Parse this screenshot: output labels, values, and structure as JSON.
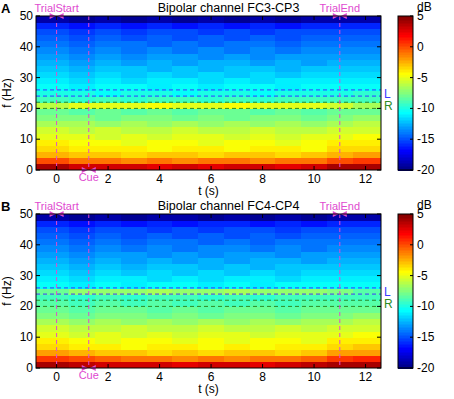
{
  "chart_data": [
    {
      "type": "heatmap",
      "panel": "A",
      "title": "Bipolar channel FC3-CP3",
      "x_label": "t (s)",
      "y_label": "f (Hz)",
      "x": [
        0,
        1,
        2,
        3,
        4,
        5,
        6,
        7,
        8,
        9,
        10,
        11,
        12
      ],
      "y": [
        1,
        3,
        5,
        7,
        9,
        11,
        13,
        15,
        17,
        19,
        21,
        23,
        25,
        27,
        29,
        31,
        33,
        35,
        37,
        39,
        41,
        43,
        45,
        47,
        49
      ],
      "z": [
        [
          4,
          3,
          3,
          3,
          2.5,
          3,
          2.5,
          3,
          3,
          2.5,
          3,
          4,
          4
        ],
        [
          0,
          -1,
          -1,
          -1.5,
          -1,
          -1.5,
          -1,
          -1,
          -1.5,
          -1,
          -1,
          0,
          0.5
        ],
        [
          -2.5,
          -3,
          -3,
          -3.5,
          -3,
          -3,
          -3.5,
          -3,
          -3,
          -3.5,
          -3,
          -2.5,
          -2
        ],
        [
          -3.5,
          -4,
          -4,
          -4,
          -4.5,
          -4,
          -4,
          -4.5,
          -4,
          -4,
          -4.5,
          -3.5,
          -3.5
        ],
        [
          -4,
          -4.5,
          -4.5,
          -5,
          -4.5,
          -4.5,
          -5,
          -4.5,
          -4.5,
          -5,
          -4.5,
          -4,
          -4
        ],
        [
          -5,
          -5,
          -5.5,
          -5,
          -5.5,
          -5,
          -5,
          -5.5,
          -5,
          -5.5,
          -5,
          -5,
          -4.5
        ],
        [
          -5.5,
          -6,
          -5.5,
          -6,
          -6,
          -5.5,
          -6,
          -6,
          -5.5,
          -6,
          -6,
          -5.5,
          -5.5
        ],
        [
          -6.5,
          -6.5,
          -7,
          -6.5,
          -7,
          -6.5,
          -7,
          -6.5,
          -7,
          -6.5,
          -7,
          -6.5,
          -6
        ],
        [
          -7.5,
          -7.5,
          -8,
          -7.5,
          -7.5,
          -8,
          -7.5,
          -8,
          -7.5,
          -7.5,
          -8,
          -7.5,
          -7
        ],
        [
          -8,
          -8.5,
          -8,
          -8.5,
          -8,
          -8.5,
          -8,
          -8,
          -8.5,
          -8,
          -8.5,
          -8,
          -8
        ],
        [
          -6,
          -5,
          -5,
          -5,
          -4.5,
          -5,
          -5,
          -4.5,
          -5,
          -5,
          -5,
          -5.5,
          -6.5
        ],
        [
          -9,
          -9.5,
          -9,
          -9.5,
          -9,
          -9,
          -9.5,
          -9,
          -9.5,
          -9,
          -9,
          -9,
          -9
        ],
        [
          -10,
          -10,
          -10.5,
          -10,
          -10,
          -10.5,
          -10,
          -10,
          -10.5,
          -10,
          -10,
          -10,
          -9.5
        ],
        [
          -10.5,
          -11,
          -10.5,
          -10.5,
          -11,
          -10.5,
          -11,
          -10.5,
          -10.5,
          -11,
          -10.5,
          -10.5,
          -10.5
        ],
        [
          -11,
          -11.5,
          -11,
          -11.5,
          -11,
          -11,
          -11.5,
          -11,
          -11.5,
          -11,
          -11,
          -11,
          -11
        ],
        [
          -11.5,
          -12,
          -11.5,
          -12,
          -11.5,
          -12,
          -11.5,
          -12,
          -11.5,
          -12,
          -11.5,
          -11.5,
          -11.5
        ],
        [
          -12,
          -12.5,
          -12,
          -12,
          -12.5,
          -12,
          -12.5,
          -12,
          -12,
          -12.5,
          -12,
          -12,
          -12
        ],
        [
          -12.5,
          -13,
          -12.5,
          -13,
          -12.5,
          -13,
          -12.5,
          -12.5,
          -13,
          -12.5,
          -13,
          -12.5,
          -12.5
        ],
        [
          -13,
          -13.5,
          -13,
          -13.5,
          -13,
          -13,
          -13.5,
          -13,
          -13.5,
          -13,
          -13,
          -13,
          -13
        ],
        [
          -13.5,
          -14,
          -13.5,
          -14,
          -13.5,
          -14,
          -13.5,
          -14,
          -13.5,
          -14,
          -13.5,
          -13.5,
          -13.5
        ],
        [
          -14,
          -14.5,
          -14,
          -14,
          -14.5,
          -14,
          -14.5,
          -14,
          -14,
          -14.5,
          -14,
          -14,
          -14
        ],
        [
          -14.5,
          -15,
          -14.5,
          -15,
          -14.5,
          -15,
          -14.5,
          -15,
          -14.5,
          -15,
          -14.5,
          -14.5,
          -14.5
        ],
        [
          -15,
          -15.5,
          -15,
          -15.5,
          -15,
          -15,
          -15.5,
          -15,
          -15.5,
          -15,
          -15,
          -15,
          -15
        ],
        [
          -16,
          -16.5,
          -16,
          -16.5,
          -16,
          -16.5,
          -16,
          -16.5,
          -16,
          -16.5,
          -16,
          -16,
          -16
        ],
        [
          -19,
          -19.5,
          -19,
          -19.5,
          -19,
          -19.5,
          -19,
          -19.5,
          -19,
          -19.5,
          -19,
          -19,
          -19
        ]
      ],
      "xlim": [
        -0.8,
        12.6
      ],
      "ylim": [
        0,
        50
      ],
      "xticks": [
        0,
        2,
        4,
        6,
        8,
        10,
        12
      ],
      "yticks": [
        0,
        10,
        20,
        30,
        40,
        50
      ],
      "colorbar": {
        "label": "dB",
        "range": [
          -20,
          5
        ],
        "ticks": [
          -20,
          -15,
          -10,
          -5,
          0,
          5
        ]
      },
      "bands": [
        {
          "label": "L",
          "low": 24,
          "high": 26,
          "color": "#3a3aff"
        },
        {
          "label": "R",
          "low": 20,
          "high": 22,
          "color": "#2e8b22"
        }
      ],
      "top_events": [
        {
          "label": "TrialStart",
          "t": 0
        },
        {
          "label": "TrialEnd",
          "t": 11
        }
      ],
      "bottom_events": [
        {
          "label": "Cue",
          "t": 1.25
        }
      ]
    },
    {
      "type": "heatmap",
      "panel": "B",
      "title": "Bipolar channel FC4-CP4",
      "x_label": "t (s)",
      "y_label": "f (Hz)",
      "x": [
        0,
        1,
        2,
        3,
        4,
        5,
        6,
        7,
        8,
        9,
        10,
        11,
        12
      ],
      "y": [
        1,
        3,
        5,
        7,
        9,
        11,
        13,
        15,
        17,
        19,
        21,
        23,
        25,
        27,
        29,
        31,
        33,
        35,
        37,
        39,
        41,
        43,
        45,
        47,
        49
      ],
      "z": [
        [
          4,
          3.5,
          3,
          3,
          3,
          2.5,
          3,
          3,
          2.5,
          3,
          3.5,
          4,
          4
        ],
        [
          0.5,
          0,
          -0.5,
          -1,
          -1,
          -1.5,
          -1,
          -1.5,
          -1,
          -1,
          -0.5,
          0.5,
          1
        ],
        [
          -2,
          -2.5,
          -3,
          -3,
          -3.5,
          -3,
          -3.5,
          -3,
          -3,
          -3.5,
          -3,
          -2,
          -2
        ],
        [
          -3.5,
          -4,
          -4,
          -4.5,
          -4,
          -4,
          -4.5,
          -4,
          -4.5,
          -4,
          -4,
          -3.5,
          -3
        ],
        [
          -4,
          -4.5,
          -5,
          -4.5,
          -4.5,
          -5,
          -4.5,
          -5,
          -4.5,
          -4.5,
          -5,
          -4,
          -4
        ],
        [
          -5,
          -5.5,
          -5,
          -5.5,
          -5,
          -5.5,
          -5,
          -5,
          -5.5,
          -5,
          -5,
          -5,
          -4.5
        ],
        [
          -5.5,
          -6,
          -6,
          -5.5,
          -6,
          -6,
          -5.5,
          -6,
          -6,
          -5.5,
          -6,
          -5.5,
          -5.5
        ],
        [
          -6.5,
          -7,
          -6.5,
          -7,
          -6.5,
          -7,
          -6.5,
          -7,
          -6.5,
          -7,
          -6.5,
          -6.5,
          -6
        ],
        [
          -7.5,
          -8,
          -7.5,
          -7.5,
          -8,
          -7.5,
          -8,
          -7.5,
          -7.5,
          -8,
          -7.5,
          -7.5,
          -7
        ],
        [
          -8,
          -8.5,
          -8,
          -8,
          -8.5,
          -8,
          -8.5,
          -8,
          -8,
          -8.5,
          -8,
          -8,
          -8
        ],
        [
          -8.5,
          -9,
          -8.5,
          -9,
          -8.5,
          -9,
          -8.5,
          -9,
          -8.5,
          -9,
          -8.5,
          -8.5,
          -8.5
        ],
        [
          -9,
          -9.5,
          -9,
          -9.5,
          -9,
          -9,
          -9.5,
          -9,
          -9.5,
          -9,
          -9,
          -9,
          -9
        ],
        [
          -8,
          -7,
          -7,
          -7,
          -6.5,
          -7,
          -7,
          -6.5,
          -7,
          -7,
          -7,
          -7.5,
          -8.5
        ],
        [
          -10.5,
          -11,
          -10.5,
          -11,
          -10.5,
          -10.5,
          -11,
          -10.5,
          -11,
          -10.5,
          -10.5,
          -10.5,
          -10.5
        ],
        [
          -11,
          -11.5,
          -11,
          -11,
          -11.5,
          -11,
          -11.5,
          -11,
          -11,
          -11.5,
          -11,
          -11,
          -11
        ],
        [
          -11.5,
          -12,
          -11.5,
          -12,
          -11.5,
          -12,
          -11.5,
          -12,
          -11.5,
          -12,
          -11.5,
          -11.5,
          -11.5
        ],
        [
          -12,
          -12.5,
          -12,
          -12.5,
          -12,
          -12,
          -12.5,
          -12,
          -12.5,
          -12,
          -12,
          -12,
          -12
        ],
        [
          -12.5,
          -13,
          -12.5,
          -13,
          -12.5,
          -13,
          -12.5,
          -13,
          -12.5,
          -12.5,
          -13,
          -12.5,
          -12.5
        ],
        [
          -13,
          -13.5,
          -13,
          -13,
          -13.5,
          -13,
          -13.5,
          -13,
          -13,
          -13.5,
          -13,
          -13,
          -13
        ],
        [
          -13.5,
          -14,
          -13.5,
          -14,
          -13.5,
          -14,
          -13.5,
          -13.5,
          -14,
          -13.5,
          -14,
          -13.5,
          -13.5
        ],
        [
          -14,
          -14.5,
          -14,
          -14.5,
          -14,
          -14,
          -14.5,
          -14,
          -14.5,
          -14,
          -14,
          -14,
          -14
        ],
        [
          -14.5,
          -15,
          -14.5,
          -15,
          -14.5,
          -15,
          -14.5,
          -15,
          -14.5,
          -15,
          -14.5,
          -14.5,
          -14.5
        ],
        [
          -15,
          -15.5,
          -15,
          -15,
          -15.5,
          -15,
          -15.5,
          -15,
          -15,
          -15.5,
          -15,
          -15,
          -15
        ],
        [
          -16,
          -16.5,
          -16,
          -16.5,
          -16,
          -16.5,
          -16,
          -16,
          -16.5,
          -16,
          -16.5,
          -16,
          -16
        ],
        [
          -19,
          -19.5,
          -19,
          -19.5,
          -19,
          -19,
          -19.5,
          -19,
          -19.5,
          -19,
          -19.5,
          -19,
          -19
        ]
      ],
      "xlim": [
        -0.8,
        12.6
      ],
      "ylim": [
        0,
        50
      ],
      "xticks": [
        0,
        2,
        4,
        6,
        8,
        10,
        12
      ],
      "yticks": [
        0,
        10,
        20,
        30,
        40,
        50
      ],
      "colorbar": {
        "label": "dB",
        "range": [
          -20,
          5
        ],
        "ticks": [
          -20,
          -15,
          -10,
          -5,
          0,
          5
        ]
      },
      "bands": [
        {
          "label": "L",
          "low": 24,
          "high": 26,
          "color": "#3a3aff"
        },
        {
          "label": "R",
          "low": 20,
          "high": 22,
          "color": "#2e8b22"
        }
      ],
      "top_events": [
        {
          "label": "TrialStart",
          "t": 0
        },
        {
          "label": "TrialEnd",
          "t": 11
        }
      ],
      "bottom_events": [
        {
          "label": "Cue",
          "t": 1.25
        }
      ]
    }
  ]
}
